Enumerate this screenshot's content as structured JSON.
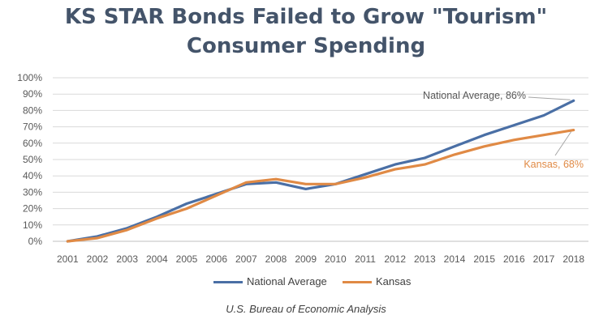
{
  "title_lines": [
    "KS STAR Bonds Failed to Grow \"Tourism\"",
    "Consumer Spending"
  ],
  "source": "U.S. Bureau of Economic Analysis",
  "chart_data": {
    "type": "line",
    "title": "KS STAR Bonds Failed to Grow \"Tourism\" Consumer Spending",
    "xlabel": "",
    "ylabel": "",
    "x": [
      "2001",
      "2002",
      "2003",
      "2004",
      "2005",
      "2006",
      "2007",
      "2008",
      "2009",
      "2010",
      "2011",
      "2012",
      "2013",
      "2014",
      "2015",
      "2016",
      "2017",
      "2018"
    ],
    "ylim": [
      0,
      100
    ],
    "yticks": [
      "0%",
      "10%",
      "20%",
      "30%",
      "40%",
      "50%",
      "60%",
      "70%",
      "80%",
      "90%",
      "100%"
    ],
    "grid": true,
    "legend_position": "bottom",
    "series": [
      {
        "name": "National Average",
        "color": "#4a6fa5",
        "values": [
          0,
          3,
          8,
          15,
          23,
          29,
          35,
          36,
          32,
          35,
          41,
          47,
          51,
          58,
          65,
          71,
          77,
          86
        ]
      },
      {
        "name": "Kansas",
        "color": "#e08a45",
        "values": [
          0,
          2,
          7,
          14,
          20,
          28,
          36,
          38,
          35,
          35,
          39,
          44,
          47,
          53,
          58,
          62,
          65,
          68
        ]
      }
    ],
    "annotations": [
      {
        "series": 0,
        "text": "National Average, 86%"
      },
      {
        "series": 1,
        "text": "Kansas, 68%"
      }
    ]
  }
}
